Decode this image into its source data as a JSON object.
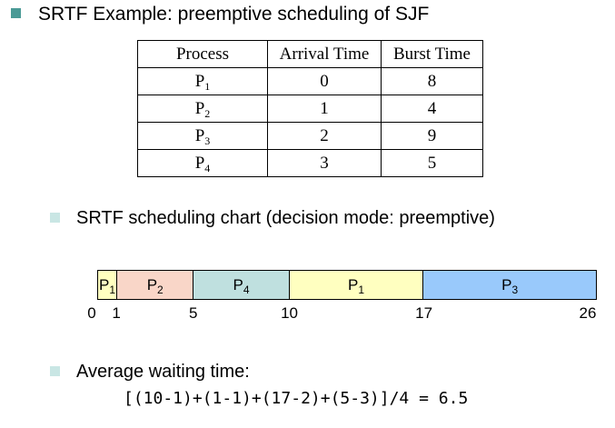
{
  "title": "SRTF Example: preemptive scheduling of SJF",
  "table": {
    "headers": [
      "Process",
      "Arrival Time",
      "Burst Time"
    ],
    "rows": [
      {
        "name": "P",
        "sub": "1",
        "arrival": "0",
        "burst": "8"
      },
      {
        "name": "P",
        "sub": "2",
        "arrival": "1",
        "burst": "4"
      },
      {
        "name": "P",
        "sub": "3",
        "arrival": "2",
        "burst": "9"
      },
      {
        "name": "P",
        "sub": "4",
        "arrival": "3",
        "burst": "5"
      }
    ]
  },
  "chart_heading": "SRTF scheduling chart (decision mode: preemptive)",
  "gantt": {
    "start": 0,
    "end": 26,
    "segments": [
      {
        "label": "P",
        "sub": "1",
        "start": 0,
        "end": 1,
        "color": "#ffffc0"
      },
      {
        "label": "P",
        "sub": "2",
        "start": 1,
        "end": 5,
        "color": "#f9d6c8"
      },
      {
        "label": "P",
        "sub": "4",
        "start": 5,
        "end": 10,
        "color": "#bfe0df"
      },
      {
        "label": "P",
        "sub": "1",
        "start": 10,
        "end": 17,
        "color": "#ffffc0"
      },
      {
        "label": "P",
        "sub": "3",
        "start": 17,
        "end": 26,
        "color": "#99c9fb"
      }
    ],
    "ticks": [
      "0",
      "1",
      "5",
      "10",
      "17",
      "26"
    ]
  },
  "avg_heading": "Average waiting time:",
  "formula": "[(10-1)+(1-1)+(17-2)+(5-3)]/4 = 6.5"
}
